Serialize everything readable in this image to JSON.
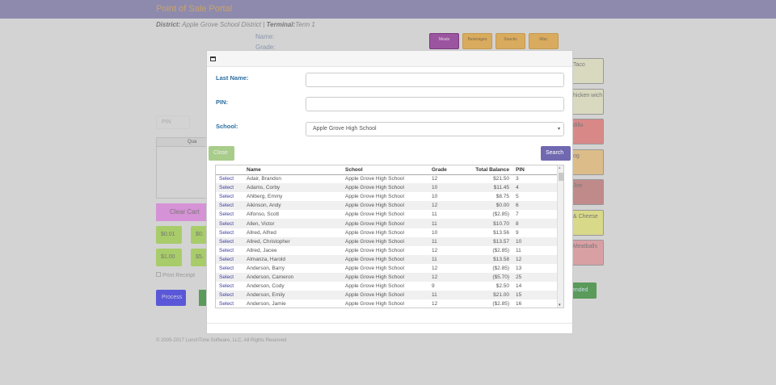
{
  "header": {
    "title": "Point of Sale Portal"
  },
  "info": {
    "district_label": "District:",
    "district": "Apple Grove School District",
    "sep": "|",
    "terminal_label": "Terminal:",
    "terminal": "Term 1"
  },
  "student": {
    "name_label": "Name:",
    "grade_label": "Grade:"
  },
  "categories": [
    {
      "label": "Meals",
      "color": "#9b54a0"
    },
    {
      "label": "Beverages",
      "color": "#d9ab5e"
    },
    {
      "label": "Snacks",
      "color": "#d9ab5e"
    },
    {
      "label": "Misc",
      "color": "#d9ab5e"
    }
  ],
  "menu_items": [
    {
      "label": "Taco",
      "color": "#d9d9c0"
    },
    {
      "label": "hicken wich",
      "color": "#d9d9c0"
    },
    {
      "label": "dilla",
      "color": "#d98888"
    },
    {
      "label": "og",
      "color": "#dcbc88"
    },
    {
      "label": "Joe",
      "color": "#c08a8a"
    },
    {
      "label": "& Cheese",
      "color": "#d9d98a"
    },
    {
      "label": "Meatballs",
      "color": "#d9a0a4"
    }
  ],
  "left": {
    "pin_placeholder": "PIN",
    "cart_header": "Qua",
    "clear_cart": "Clear Cart",
    "money": [
      "$0.01",
      "$0.",
      "$1.00",
      "$5."
    ],
    "print_receipt": "Print Receipt",
    "process": "Process",
    "attended": "tended"
  },
  "footer": {
    "copyright": "© 2005-2017 LunchTime Software, LLC. All Rights Reserved"
  },
  "modal": {
    "last_name_label": "Last Name:",
    "last_name_value": "",
    "pin_label": "PIN:",
    "pin_value": "",
    "school_label": "School:",
    "school_value": "Apple Grove High School",
    "close": "Close",
    "search": "Search",
    "columns": [
      "",
      "Name",
      "School",
      "Grade",
      "Total Balance",
      "PIN"
    ],
    "rows": [
      [
        "Select",
        "Adair, Brandon",
        "Apple Grove High School",
        "12",
        "$21.50",
        "3"
      ],
      [
        "Select",
        "Adams, Corby",
        "Apple Grove High School",
        "10",
        "$11.45",
        "4"
      ],
      [
        "Select",
        "Ahlberg, Emmy",
        "Apple Grove High School",
        "10",
        "$8.75",
        "5"
      ],
      [
        "Select",
        "Aikinson, Andy",
        "Apple Grove High School",
        "12",
        "$0.00",
        "6"
      ],
      [
        "Select",
        "Alfonso, Scott",
        "Apple Grove High School",
        "11",
        "($2.85)",
        "7"
      ],
      [
        "Select",
        "Allen, Victor",
        "Apple Grove High School",
        "11",
        "$10.70",
        "8"
      ],
      [
        "Select",
        "Allred, Alfred",
        "Apple Grove High School",
        "10",
        "$13.56",
        "9"
      ],
      [
        "Select",
        "Allred, Christopher",
        "Apple Grove High School",
        "11",
        "$13.57",
        "10"
      ],
      [
        "Select",
        "Allred, Jacee",
        "Apple Grove High School",
        "12",
        "($2.85)",
        "11"
      ],
      [
        "Select",
        "Almanza, Harold",
        "Apple Grove High School",
        "11",
        "$13.58",
        "12"
      ],
      [
        "Select",
        "Anderson, Barry",
        "Apple Grove High School",
        "12",
        "($2.85)",
        "13"
      ],
      [
        "Select",
        "Anderson, Cameron",
        "Apple Grove High School",
        "12",
        "($5.70)",
        "25"
      ],
      [
        "Select",
        "Anderson, Cody",
        "Apple Grove High School",
        "9",
        "$2.50",
        "14"
      ],
      [
        "Select",
        "Anderson, Emily",
        "Apple Grove High School",
        "11",
        "$21.00",
        "15"
      ],
      [
        "Select",
        "Anderson, Jamie",
        "Apple Grove High School",
        "12",
        "($2.85)",
        "16"
      ]
    ]
  }
}
